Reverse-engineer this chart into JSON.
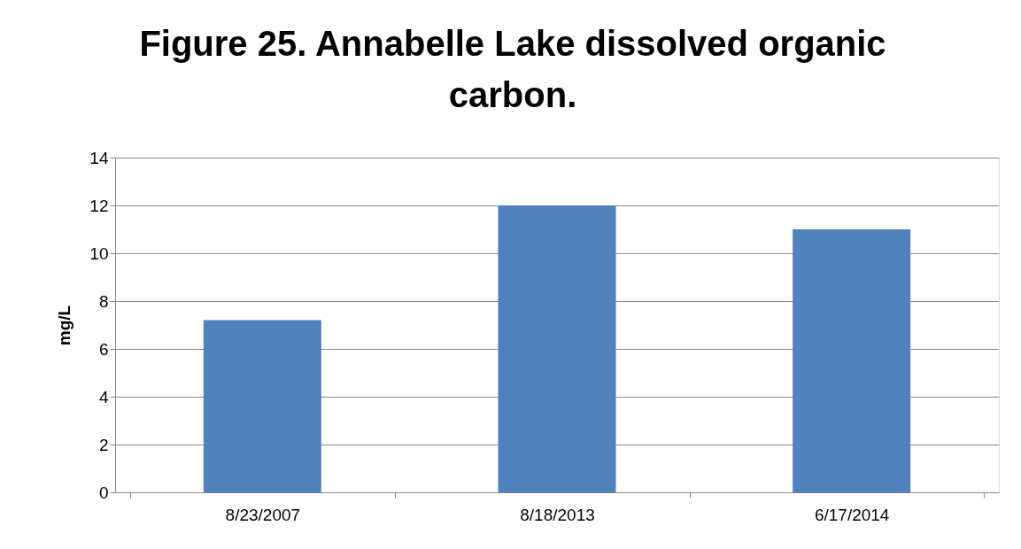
{
  "chart_data": {
    "type": "bar",
    "title": "Figure 25. Annabelle Lake dissolved organic carbon.",
    "ylabel": "mg/L",
    "categories": [
      "8/23/2007",
      "8/18/2013",
      "6/17/2014"
    ],
    "values": [
      7.2,
      12.0,
      11.0
    ],
    "color": "#4f81bd",
    "ylim": [
      0,
      14
    ],
    "yticks": [
      0,
      2,
      4,
      6,
      8,
      10,
      12,
      14
    ],
    "grid": "y"
  }
}
